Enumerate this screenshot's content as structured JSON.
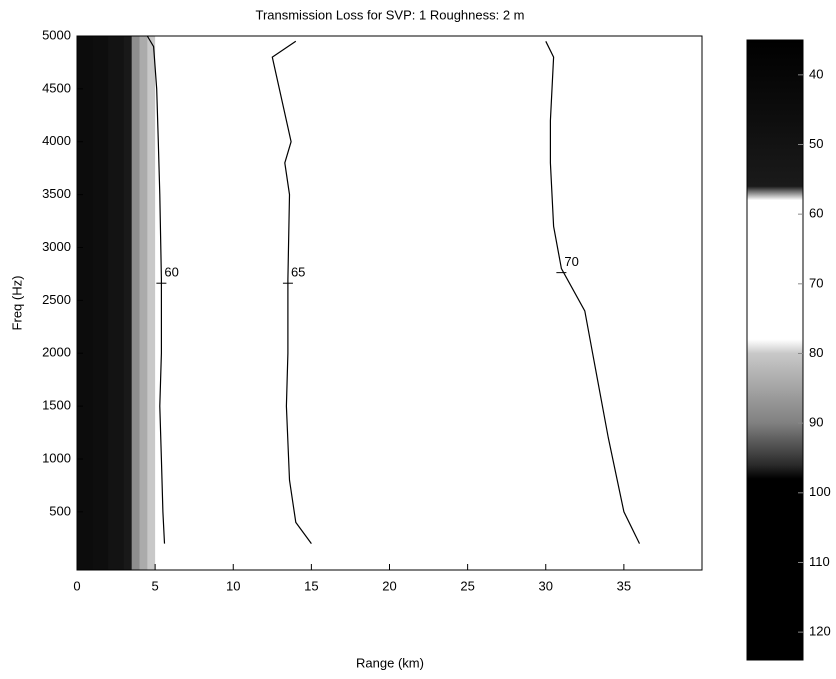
{
  "chart_data": {
    "type": "contour",
    "title": "Transmission Loss for SVP: 1 Roughness: 2 m",
    "x_label": "Range (km)",
    "y_label": "Freq (Hz)",
    "xlim": [
      0,
      40
    ],
    "ylim": [
      -50,
      5000
    ],
    "xticks": [
      0,
      5,
      10,
      15,
      20,
      25,
      30,
      35
    ],
    "yticks": [
      500,
      1000,
      1500,
      2000,
      2500,
      3000,
      3500,
      4000,
      4500,
      5000
    ],
    "field": {
      "x": [
        0,
        1,
        2,
        3,
        3.5,
        4,
        4.5,
        5,
        40
      ],
      "values": [
        45,
        46,
        50,
        55,
        88,
        84,
        80,
        66
      ]
    },
    "colormap": [
      {
        "value": 35,
        "color": "#000000"
      },
      {
        "value": 56,
        "color": "#1a1a1a"
      },
      {
        "value": 58,
        "color": "#ffffff"
      },
      {
        "value": 78,
        "color": "#ffffff"
      },
      {
        "value": 80,
        "color": "#c8c8c8"
      },
      {
        "value": 90,
        "color": "#808080"
      },
      {
        "value": 96,
        "color": "#2a2a2a"
      },
      {
        "value": 98,
        "color": "#000000"
      },
      {
        "value": 124,
        "color": "#000000"
      }
    ],
    "colorbar": {
      "clim": [
        35,
        124
      ],
      "ticks": [
        40,
        50,
        60,
        70,
        80,
        90,
        100,
        110,
        120
      ]
    },
    "contour_color": "#000000",
    "series": [
      {
        "name": "60",
        "x": [
          5.6,
          5.5,
          5.4,
          5.3,
          5.4,
          5.4,
          5.3,
          5.2,
          5.1,
          4.9,
          4.5
        ],
        "values": [
          200,
          500,
          1000,
          1500,
          2000,
          2700,
          3500,
          4000,
          4500,
          4900,
          5000
        ]
      },
      {
        "name": "65",
        "x": [
          15,
          14,
          13.6,
          13.4,
          13.5,
          13.5,
          13.6,
          13.3,
          13.7,
          12.5,
          14
        ],
        "values": [
          200,
          400,
          800,
          1500,
          2000,
          2700,
          3500,
          3800,
          4000,
          4800,
          4950
        ]
      },
      {
        "name": "70",
        "x": [
          36,
          35,
          34,
          33,
          32.5,
          31,
          30.5,
          30.3,
          30.3,
          30.5,
          30
        ],
        "values": [
          200,
          500,
          1200,
          2000,
          2400,
          2800,
          3200,
          3800,
          4200,
          4800,
          4950
        ]
      }
    ]
  }
}
